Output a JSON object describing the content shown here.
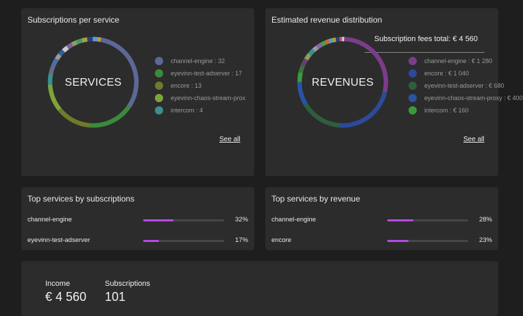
{
  "subs_card": {
    "title": "Subscriptions per service",
    "center": "SERVICES",
    "see_all": "See all",
    "legend": [
      {
        "label": "channel-engine : 32",
        "color": "#5d6899"
      },
      {
        "label": "eyevinn-test-adserver : 17",
        "color": "#3c8a3c"
      },
      {
        "label": "encore : 13",
        "color": "#6f7a2a"
      },
      {
        "label": "eyevinn-chaos-stream-prox",
        "color": "#7ea33a"
      },
      {
        "label": "intercom : 4",
        "color": "#3b8f8f"
      }
    ],
    "segments": [
      {
        "value": 32,
        "color": "#5d6899"
      },
      {
        "value": 17,
        "color": "#3c8a3c"
      },
      {
        "value": 13,
        "color": "#6f7a2a"
      },
      {
        "value": 10,
        "color": "#7ea33a"
      },
      {
        "value": 4,
        "color": "#3b8f8f"
      },
      {
        "value": 3,
        "color": "#6a6a86"
      },
      {
        "value": 3,
        "color": "#4a6fb0"
      },
      {
        "value": 2,
        "color": "#9a9a9a"
      },
      {
        "value": 2,
        "color": "#2d5fa0"
      },
      {
        "value": 2,
        "color": "#c9c9c9"
      },
      {
        "value": 2,
        "color": "#7d5fa3"
      },
      {
        "value": 2,
        "color": "#8aa05a"
      },
      {
        "value": 2,
        "color": "#3f9a6b"
      },
      {
        "value": 2,
        "color": "#a3a341"
      },
      {
        "value": 2,
        "color": "#2c3e7a"
      },
      {
        "value": 2,
        "color": "#5a9bd3"
      },
      {
        "value": 1,
        "color": "#c6a032"
      }
    ]
  },
  "rev_card": {
    "title": "Estimated revenue distribution",
    "total": "Subscription fees total: € 4 560",
    "center": "REVENUES",
    "see_all": "See all",
    "legend": [
      {
        "label": "channel-engine : € 1 280",
        "color": "#7a3d8a"
      },
      {
        "label": "encore : € 1 040",
        "color": "#2d4a9a"
      },
      {
        "label": "eyevinn-test-adserver : € 680",
        "color": "#2f5e3e"
      },
      {
        "label": "eyevinn-chaos-stream-proxy : € 400",
        "color": "#2a53a6"
      },
      {
        "label": "intercom : € 160",
        "color": "#3a9a3a"
      }
    ],
    "segments": [
      {
        "value": 1280,
        "color": "#7a3d8a"
      },
      {
        "value": 1040,
        "color": "#2d4a9a"
      },
      {
        "value": 680,
        "color": "#2f5e3e"
      },
      {
        "value": 400,
        "color": "#2a53a6"
      },
      {
        "value": 160,
        "color": "#3a9a3a"
      },
      {
        "value": 120,
        "color": "#3c6f3c"
      },
      {
        "value": 120,
        "color": "#6a3d7a"
      },
      {
        "value": 100,
        "color": "#8aa05a"
      },
      {
        "value": 100,
        "color": "#3b8f8f"
      },
      {
        "value": 80,
        "color": "#9a9a9a"
      },
      {
        "value": 80,
        "color": "#8a5fb0"
      },
      {
        "value": 80,
        "color": "#4aa04a"
      },
      {
        "value": 60,
        "color": "#c96a32"
      },
      {
        "value": 60,
        "color": "#5a9bd3"
      },
      {
        "value": 60,
        "color": "#a3a341"
      },
      {
        "value": 60,
        "color": "#2c3e7a"
      },
      {
        "value": 40,
        "color": "#c94d7a"
      },
      {
        "value": 40,
        "color": "#c9c9c9"
      }
    ]
  },
  "top_subs": {
    "title": "Top services by subscriptions",
    "rows": [
      {
        "label": "channel-engine",
        "pct": "32%",
        "fraction": 0.32
      },
      {
        "label": "eyevinn-test-adserver",
        "pct": "17%",
        "fraction": 0.17
      }
    ]
  },
  "top_rev": {
    "title": "Top services by revenue",
    "rows": [
      {
        "label": "channel-engine",
        "pct": "28%",
        "fraction": 0.28
      },
      {
        "label": "encore",
        "pct": "23%",
        "fraction": 0.23
      }
    ]
  },
  "stats": {
    "income_label": "Income",
    "income_value": "€ 4 560",
    "subs_label": "Subscriptions",
    "subs_value": "101"
  }
}
